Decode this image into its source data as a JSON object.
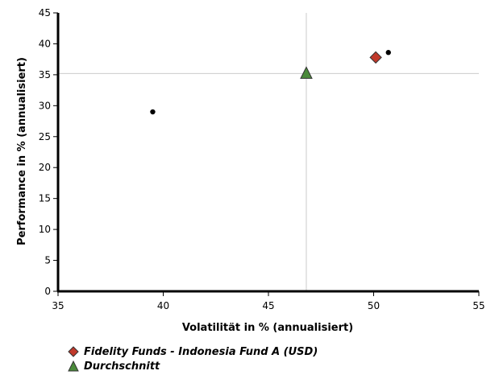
{
  "chart_data": {
    "type": "scatter",
    "xlabel": "Volatilität in % (annualisiert)",
    "ylabel": "Performance in % (annualisiert)",
    "xlim": [
      35,
      55
    ],
    "ylim": [
      0,
      45
    ],
    "xticks": [
      35,
      40,
      45,
      50,
      55
    ],
    "yticks": [
      0,
      5,
      10,
      15,
      20,
      25,
      30,
      35,
      40,
      45
    ],
    "xtick_labels": [
      "35",
      "40",
      "45",
      "50",
      "55"
    ],
    "ytick_labels": [
      "0",
      "5",
      "10",
      "15",
      "20",
      "25",
      "30",
      "35",
      "40",
      "45"
    ],
    "grid": false,
    "crosshair": {
      "x": 46.8,
      "y": 35.2
    },
    "legend_position": "bottom-left",
    "series": [
      {
        "name": "Fidelity Funds - Indonesia Fund A (USD)",
        "marker": "diamond",
        "color": "#c0392b",
        "points": [
          {
            "x": 50.1,
            "y": 37.8
          }
        ]
      },
      {
        "name": "Durchschnitt",
        "marker": "triangle",
        "color": "#4a8a3a",
        "points": [
          {
            "x": 46.8,
            "y": 35.2
          }
        ]
      },
      {
        "marker": "dot",
        "color": "#000000",
        "points": [
          {
            "x": 39.5,
            "y": 29.0
          },
          {
            "x": 50.7,
            "y": 38.6
          }
        ]
      }
    ]
  }
}
